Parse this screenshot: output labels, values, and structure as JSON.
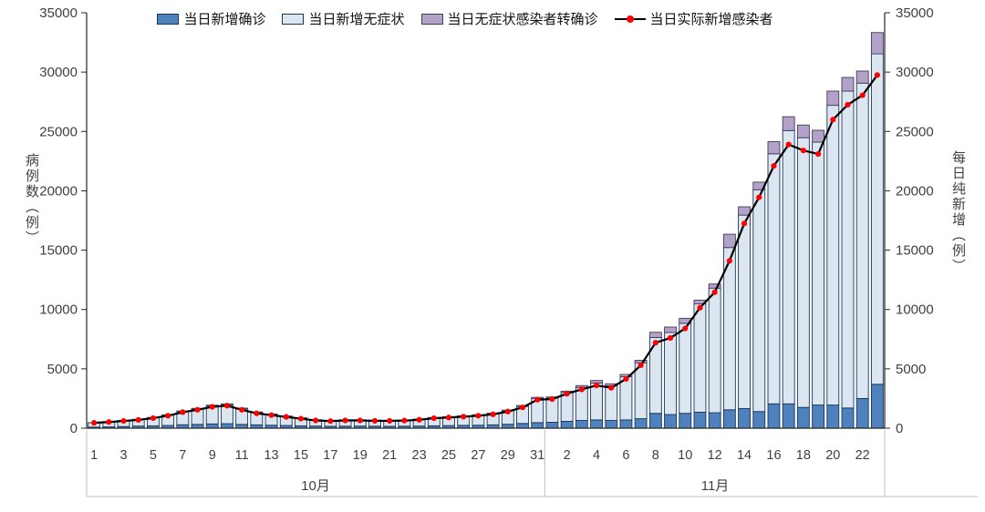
{
  "legend": [
    {
      "label": "当日新增确诊",
      "type": "bar",
      "color": "#4f81bd"
    },
    {
      "label": "当日新增无症状",
      "type": "bar",
      "color": "#dce6f1"
    },
    {
      "label": "当日无症状感染者转确诊",
      "type": "bar",
      "color": "#b3a2c7"
    },
    {
      "label": "当日实际新增感染者",
      "type": "line",
      "color": "#000000",
      "marker_color": "#ff0000"
    }
  ],
  "axes": {
    "y_left_title": "病例数（例）",
    "y_right_title": "每日纯新增（例）",
    "y_min": 0,
    "y_max": 35000,
    "y_step": 5000,
    "x_months": [
      {
        "label": "10月",
        "slots": 31
      },
      {
        "label": "11月",
        "slots": 23
      }
    ],
    "x_tick_labels": [
      {
        "label": "1",
        "slot": 0
      },
      {
        "label": "3",
        "slot": 2
      },
      {
        "label": "5",
        "slot": 4
      },
      {
        "label": "7",
        "slot": 6
      },
      {
        "label": "9",
        "slot": 8
      },
      {
        "label": "11",
        "slot": 10
      },
      {
        "label": "13",
        "slot": 12
      },
      {
        "label": "15",
        "slot": 14
      },
      {
        "label": "17",
        "slot": 16
      },
      {
        "label": "19",
        "slot": 18
      },
      {
        "label": "21",
        "slot": 20
      },
      {
        "label": "23",
        "slot": 22
      },
      {
        "label": "25",
        "slot": 24
      },
      {
        "label": "27",
        "slot": 26
      },
      {
        "label": "29",
        "slot": 28
      },
      {
        "label": "31",
        "slot": 30
      },
      {
        "label": "2",
        "slot": 32
      },
      {
        "label": "4",
        "slot": 34
      },
      {
        "label": "6",
        "slot": 36
      },
      {
        "label": "8",
        "slot": 38
      },
      {
        "label": "10",
        "slot": 40
      },
      {
        "label": "12",
        "slot": 42
      },
      {
        "label": "14",
        "slot": 44
      },
      {
        "label": "16",
        "slot": 46
      },
      {
        "label": "18",
        "slot": 48
      },
      {
        "label": "20",
        "slot": 50
      },
      {
        "label": "22",
        "slot": 52
      }
    ]
  },
  "chart_data": {
    "type": "bar",
    "subtype": "stacked-bars-with-line-overlay",
    "x_dates": "2022-10-01 .. 2022-11-23 (54 days)",
    "ylim": [
      0,
      35000
    ],
    "grid": false,
    "legend_position": "top-center",
    "series": [
      {
        "name": "当日新增确诊",
        "role": "bar-stack-bottom",
        "color": "#4f81bd",
        "values": [
          90,
          110,
          140,
          180,
          200,
          230,
          290,
          320,
          360,
          380,
          320,
          280,
          250,
          230,
          200,
          180,
          160,
          170,
          180,
          170,
          160,
          170,
          180,
          200,
          220,
          240,
          250,
          280,
          330,
          400,
          470,
          500,
          580,
          650,
          700,
          650,
          700,
          800,
          1250,
          1150,
          1250,
          1350,
          1300,
          1550,
          1650,
          1400,
          2050,
          2050,
          1750,
          1950,
          1950,
          1700,
          2500,
          3700
        ]
      },
      {
        "name": "当日新增无症状",
        "role": "bar-stack-middle",
        "color": "#dce6f1",
        "values": [
          370,
          425,
          490,
          545,
          680,
          860,
          1110,
          1290,
          1510,
          1590,
          1300,
          1030,
          900,
          760,
          640,
          500,
          470,
          510,
          500,
          480,
          485,
          495,
          560,
          670,
          715,
          770,
          840,
          940,
          1130,
          1430,
          2030,
          2040,
          2430,
          2780,
          3110,
          2920,
          3640,
          4710,
          6390,
          6910,
          7580,
          9120,
          10500,
          13670,
          16300,
          18690,
          21070,
          23020,
          22720,
          22150,
          25250,
          26700,
          26570,
          27840
        ]
      },
      {
        "name": "当日无症状感染者转确诊",
        "role": "bar-stack-top",
        "color": "#b3a2c7",
        "values": [
          10,
          15,
          20,
          25,
          30,
          40,
          50,
          60,
          70,
          70,
          70,
          60,
          50,
          40,
          40,
          30,
          30,
          30,
          30,
          30,
          25,
          25,
          30,
          30,
          35,
          40,
          40,
          50,
          60,
          80,
          100,
          90,
          110,
          160,
          210,
          170,
          190,
          210,
          440,
          460,
          430,
          320,
          350,
          1120,
          700,
          640,
          1020,
          1170,
          1070,
          1000,
          1200,
          1150,
          1020,
          1790
        ]
      },
      {
        "name": "当日实际新增感染者",
        "role": "line",
        "color": "#000000",
        "marker_color": "#ff0000",
        "values": [
          450,
          520,
          610,
          700,
          850,
          1050,
          1350,
          1550,
          1800,
          1900,
          1550,
          1250,
          1100,
          950,
          800,
          650,
          600,
          650,
          650,
          620,
          620,
          640,
          710,
          840,
          900,
          970,
          1050,
          1170,
          1400,
          1750,
          2400,
          2450,
          2900,
          3270,
          3600,
          3400,
          4150,
          5300,
          7200,
          7600,
          8400,
          10150,
          11450,
          14100,
          17250,
          19450,
          22100,
          23900,
          23400,
          23100,
          26000,
          27250,
          28050,
          29750
        ]
      }
    ]
  },
  "colors": {
    "bar_border_blue": "#17375e",
    "bar_border_purple": "#453a5a",
    "axis_line": "#262626",
    "tick_text": "#404040",
    "category_divider": "#bfbfbf"
  }
}
